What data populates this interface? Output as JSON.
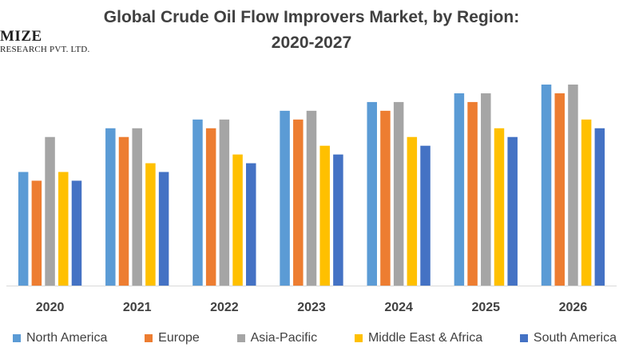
{
  "logo": {
    "brand": "MIZE",
    "sub": "RESEARCH PVT. LTD."
  },
  "chart_data": {
    "type": "bar",
    "title_line1": "Global Crude Oil Flow Improvers Market, by Region:",
    "title_line2": "2020-2027",
    "categories": [
      "2020",
      "2021",
      "2022",
      "2023",
      "2024",
      "2025",
      "2026"
    ],
    "series": [
      {
        "name": "North America",
        "color": "#5b9bd5",
        "values": [
          13,
          18,
          19,
          20,
          21,
          22,
          23
        ]
      },
      {
        "name": "Europe",
        "color": "#ed7d31",
        "values": [
          12,
          17,
          18,
          19,
          20,
          21,
          22
        ]
      },
      {
        "name": "Asia-Pacific",
        "color": "#a5a5a5",
        "values": [
          17,
          18,
          19,
          20,
          21,
          22,
          23
        ]
      },
      {
        "name": "Middle East & Africa",
        "color": "#ffc000",
        "values": [
          13,
          14,
          15,
          16,
          17,
          18,
          19
        ]
      },
      {
        "name": "South America",
        "color": "#4472c4",
        "values": [
          12,
          13,
          14,
          15,
          16,
          17,
          18
        ]
      }
    ],
    "ylim": [
      0,
      23
    ],
    "grid": false,
    "legend": "bottom"
  }
}
